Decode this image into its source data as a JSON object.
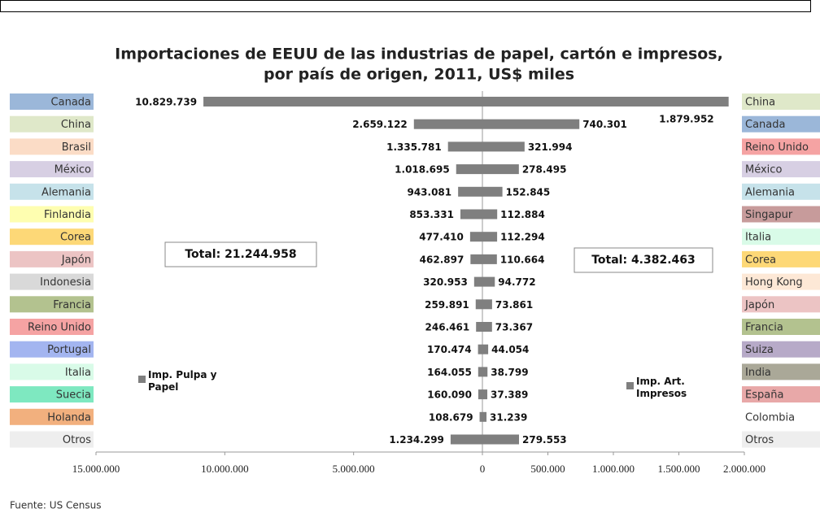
{
  "chart_data": {
    "type": "butterfly",
    "title": [
      "Importaciones de EEUU de las industrias de papel, cartón e impresos,",
      "por país de origen, 2011, US$ miles"
    ],
    "xlim": [
      0,
      15000000
    ],
    "xticks": [
      {
        "value": 15000000,
        "label": "15.000.000"
      },
      {
        "value": 10000000,
        "label": "10.000.000"
      },
      {
        "value": 5000000,
        "label": "5.000.000"
      },
      0
    ],
    "x2lim": [
      0,
      2000000
    ],
    "x2ticks": [
      0,
      {
        "value": 500000,
        "label": "500.000"
      },
      {
        "value": 1000000,
        "label": "1.000.000"
      },
      {
        "value": 1500000,
        "label": "1.500.000"
      },
      {
        "value": 2000000,
        "label": "2.000.000"
      }
    ],
    "series": [
      {
        "name": "Imp. Pulpa y Papel",
        "color": "#7f7f7f",
        "axis": "x",
        "total": "Total: 21.244.958",
        "categories": [
          "Canada",
          "China",
          "Brasil",
          "México",
          "Alemania",
          "Finlandia",
          "Corea",
          "Japón",
          "Indonesia",
          "Francia",
          "Reino Unido",
          "Portugal",
          "Italia",
          "Suecia",
          "Holanda",
          "Otros"
        ],
        "category_colors": [
          "#9bb7d9",
          "#dfe8c9",
          "#fbdcc6",
          "#d7cfe3",
          "#c6e2ea",
          "#fefeb0",
          "#fdd877",
          "#ecc4c4",
          "#d9d9d9",
          "#b3c28f",
          "#f5a3a3",
          "#a3b5f0",
          "#d9fbe8",
          "#7ee8c0",
          "#f2b07e",
          "#eeeeee"
        ],
        "values": [
          10829739,
          2659122,
          1335781,
          1018695,
          943081,
          853331,
          477410,
          462897,
          320953,
          259891,
          246461,
          170474,
          164055,
          160090,
          108679,
          1234299
        ],
        "value_labels": [
          "10.829.739",
          "2.659.122",
          "1.335.781",
          "1.018.695",
          "943.081",
          "853.331",
          "477.410",
          "462.897",
          "320.953",
          "259.891",
          "246.461",
          "170.474",
          "164.055",
          "160.090",
          "108.679",
          "1.234.299"
        ]
      },
      {
        "name": "Imp. Art. Impresos",
        "color": "#7f7f7f",
        "axis": "x2",
        "total": "Total: 4.382.463",
        "categories": [
          "China",
          "Canada",
          "Reino Unido",
          "México",
          "Alemania",
          "Singapur",
          "Italia",
          "Corea",
          "Hong Kong",
          "Japón",
          "Francia",
          "Suiza",
          "India",
          "España",
          "Colombia",
          "Otros"
        ],
        "category_colors": [
          "#dfe8c9",
          "#9bb7d9",
          "#f5a3a3",
          "#d7cfe3",
          "#c6e2ea",
          "#c79b9b",
          "#d9fbe8",
          "#fdd877",
          "#fde8d6",
          "#ecc4c4",
          "#b3c28f",
          "#b7aac8",
          "#aaa898",
          "#e8a8a8",
          "#ffffff",
          "#eeeeee"
        ],
        "values": [
          1879952,
          740301,
          321994,
          278495,
          152845,
          112884,
          112294,
          110664,
          94772,
          73861,
          73367,
          44054,
          38799,
          37389,
          31239,
          279553
        ],
        "value_labels": [
          "1.879.952",
          "740.301",
          "321.994",
          "278.495",
          "152.845",
          "112.884",
          "112.294",
          "110.664",
          "94.772",
          "73.861",
          "73.367",
          "44.054",
          "38.799",
          "37.389",
          "31.239",
          "279.553"
        ]
      }
    ],
    "source": "Fuente: US Census"
  }
}
